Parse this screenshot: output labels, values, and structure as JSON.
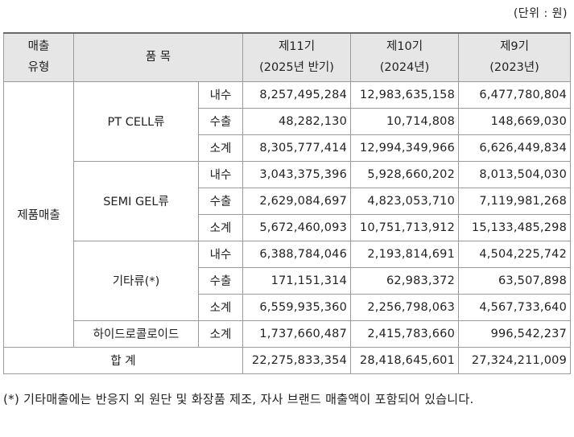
{
  "unit_label": "(단위 : 원)",
  "header": {
    "type_label_line1": "매출",
    "type_label_line2": "유형",
    "item_label": "품 목",
    "periods": [
      {
        "name": "제11기",
        "sub": "(2025년 반기)"
      },
      {
        "name": "제10기",
        "sub": "(2024년)"
      },
      {
        "name": "제9기",
        "sub": "(2023년)"
      }
    ]
  },
  "sales_type": "제품매출",
  "groups": [
    {
      "product": "PT CELL류",
      "rows": [
        {
          "kind": "내수",
          "values": [
            "8,257,495,284",
            "12,983,635,158",
            "6,477,780,804"
          ]
        },
        {
          "kind": "수출",
          "values": [
            "48,282,130",
            "10,714,808",
            "148,669,030"
          ]
        },
        {
          "kind": "소계",
          "values": [
            "8,305,777,414",
            "12,994,349,966",
            "6,626,449,834"
          ]
        }
      ]
    },
    {
      "product": "SEMI GEL류",
      "rows": [
        {
          "kind": "내수",
          "values": [
            "3,043,375,396",
            "5,928,660,202",
            "8,013,504,030"
          ]
        },
        {
          "kind": "수출",
          "values": [
            "2,629,084,697",
            "4,823,053,710",
            "7,119,981,268"
          ]
        },
        {
          "kind": "소계",
          "values": [
            "5,672,460,093",
            "10,751,713,912",
            "15,133,485,298"
          ]
        }
      ]
    },
    {
      "product": "기타류(*)",
      "rows": [
        {
          "kind": "내수",
          "values": [
            "6,388,784,046",
            "2,193,814,691",
            "4,504,225,742"
          ]
        },
        {
          "kind": "수출",
          "values": [
            "171,151,314",
            "62,983,372",
            "63,507,898"
          ]
        },
        {
          "kind": "소계",
          "values": [
            "6,559,935,360",
            "2,256,798,063",
            "4,567,733,640"
          ]
        }
      ]
    },
    {
      "product": "하이드로콜로이드",
      "rows": [
        {
          "kind": "소계",
          "values": [
            "1,737,660,487",
            "2,415,783,660",
            "996,542,237"
          ]
        }
      ]
    }
  ],
  "total": {
    "label": "합 계",
    "values": [
      "22,275,833,354",
      "28,418,645,601",
      "27,324,211,009"
    ]
  },
  "footnote": "(*) 기타매출에는 반응지 외 원단 및 화장품 제조, 자사 브랜드 매출액이 포함되어 있습니다."
}
